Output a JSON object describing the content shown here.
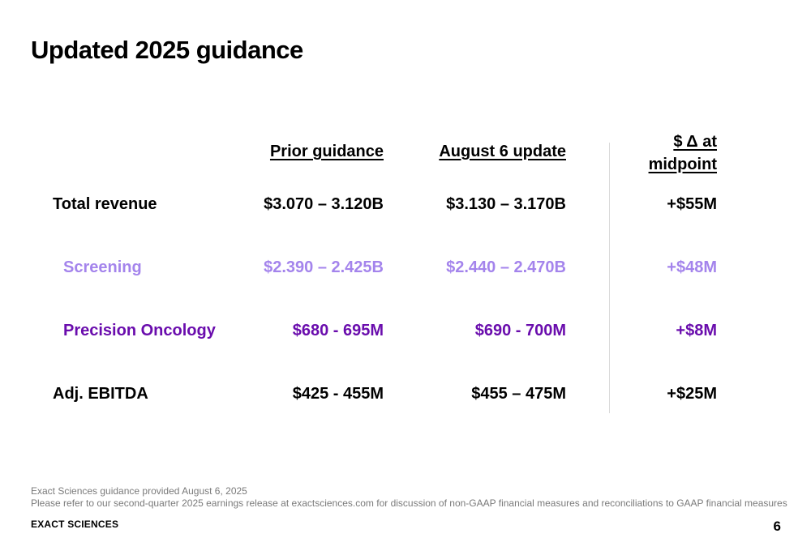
{
  "slide": {
    "title": "Updated 2025 guidance"
  },
  "table": {
    "headers": {
      "prior": "Prior guidance",
      "update": "August 6 update",
      "delta_line1": "$ Δ at",
      "delta_line2": "midpoint"
    },
    "rows": [
      {
        "label": "Total revenue",
        "prior": "$3.070 – 3.120B",
        "update": "$3.130 – 3.170B",
        "delta": "+$55M"
      },
      {
        "label": "Screening",
        "prior": "$2.390 – 2.425B",
        "update": "$2.440 – 2.470B",
        "delta": "+$48M"
      },
      {
        "label": "Precision Oncology",
        "prior": "$680 - 695M",
        "update": "$690 - 700M",
        "delta": "+$8M"
      },
      {
        "label": "Adj. EBITDA",
        "prior": "$425 - 455M",
        "update": "$455 – 475M",
        "delta": "+$25M"
      }
    ]
  },
  "colors": {
    "screening": "#a484ec",
    "precision_oncology": "#6a0dad"
  },
  "footer": {
    "note1": "Exact Sciences guidance provided August 6, 2025",
    "note2": "Please refer to our second-quarter 2025 earnings release at exactsciences.com for discussion of non-GAAP financial measures and reconciliations to GAAP financial measures",
    "brand": "EXACT SCIENCES",
    "page_number": "6"
  }
}
